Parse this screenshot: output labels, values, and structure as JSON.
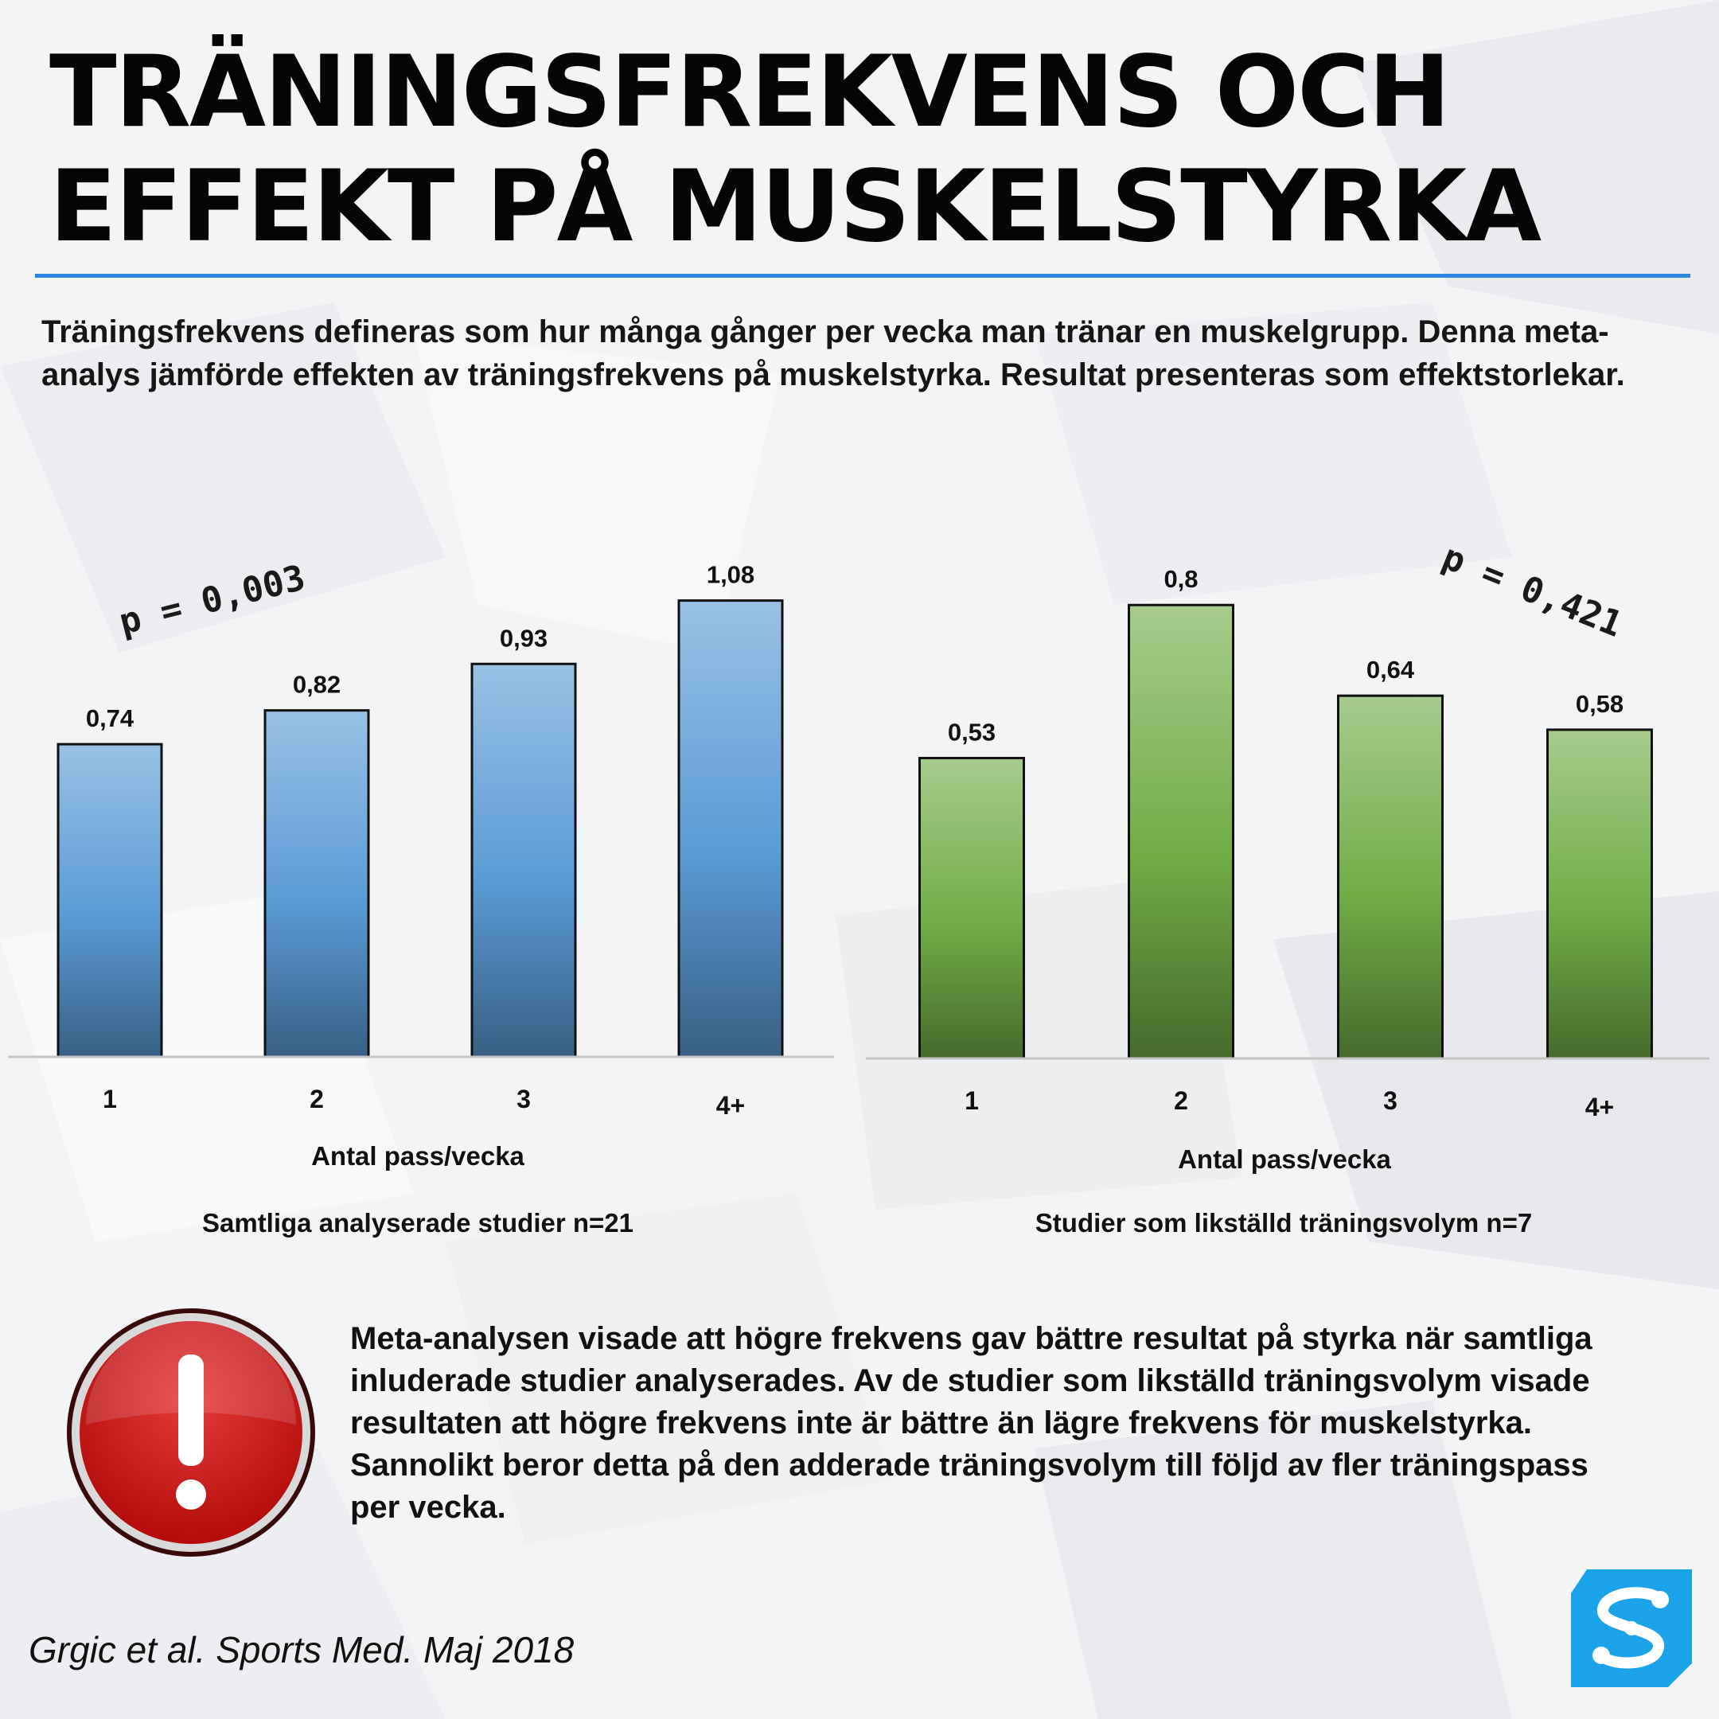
{
  "title": {
    "line1": "TRÄNINGSFREKVENS OCH",
    "line2": "EFFEKT PÅ MUSKELSTYRKA"
  },
  "intro": "Träningsfrekvens defineras som hur många gånger per vecka man tränar en muskelgrupp. Denna meta-analys jämförde effekten av träningsfrekvens på muskelstyrka. Resultat presenteras som effektstorlekar.",
  "chart_data": [
    {
      "type": "bar",
      "categories": [
        "1",
        "2",
        "3",
        "4+"
      ],
      "values": [
        0.74,
        0.82,
        0.93,
        1.08
      ],
      "value_labels": [
        "0,74",
        "0,82",
        "0,93",
        "1,08"
      ],
      "xlabel": "Antal pass/vecka",
      "subtitle": "Samtliga analyserade studier n=21",
      "annotation": "p = 0,003",
      "color": "#5b9bd5",
      "ylim": [
        0,
        1.1
      ],
      "grid": false
    },
    {
      "type": "bar",
      "categories": [
        "1",
        "2",
        "3",
        "4+"
      ],
      "values": [
        0.53,
        0.8,
        0.64,
        0.58
      ],
      "value_labels": [
        "0,53",
        "0,8",
        "0,64",
        "0,58"
      ],
      "xlabel": "Antal pass/vecka",
      "subtitle": "Studier som likställd träningsvolym n=7",
      "annotation": "p = 0,421",
      "color": "#70ad47",
      "ylim": [
        0,
        0.82
      ],
      "grid": false
    }
  ],
  "conclusion": "Meta-analysen visade att högre frekvens gav bättre resultat på styrka när samtliga inluderade studier analyserades. Av de studier som likställd träningsvolym visade resultaten att högre frekvens inte är bättre än lägre frekvens för muskelstyrka. Sannolikt beror detta på den adderade träningsvolym till följd av fler träningspass per vecka.",
  "citation": "Grgic et al. Sports Med. Maj 2018",
  "icons": {
    "warning": "exclamation-warning-icon",
    "logo": "brand-logo-icon"
  },
  "colors": {
    "accent_rule": "#2f86e0",
    "warning_red": "#cc1414",
    "logo_blue": "#1aa3e8"
  }
}
